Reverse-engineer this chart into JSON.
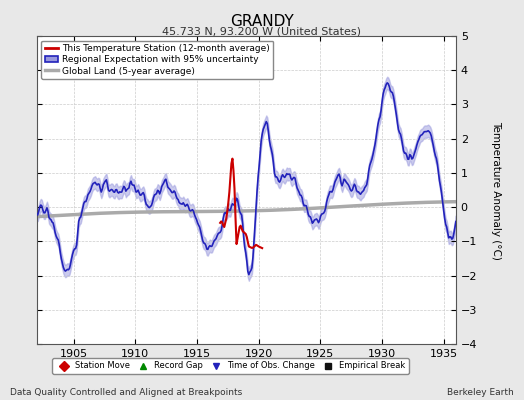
{
  "title": "GRANDY",
  "subtitle": "45.733 N, 93.200 W (United States)",
  "ylabel": "Temperature Anomaly (°C)",
  "xlabel_left": "Data Quality Controlled and Aligned at Breakpoints",
  "xlabel_right": "Berkeley Earth",
  "ylim": [
    -4,
    5
  ],
  "xlim": [
    1902,
    1936
  ],
  "xticks": [
    1905,
    1910,
    1915,
    1920,
    1925,
    1930,
    1935
  ],
  "yticks": [
    -4,
    -3,
    -2,
    -1,
    0,
    1,
    2,
    3,
    4,
    5
  ],
  "background_color": "#e8e8e8",
  "plot_background": "#ffffff",
  "regional_color": "#2222bb",
  "regional_fill_color": "#9999dd",
  "station_color": "#cc0000",
  "global_color": "#aaaaaa",
  "global_lw": 2.5,
  "regional_lw": 1.2,
  "station_lw": 1.5,
  "legend_items": [
    {
      "label": "This Temperature Station (12-month average)",
      "color": "#cc0000",
      "lw": 2
    },
    {
      "label": "Regional Expectation with 95% uncertainty",
      "color": "#2222bb",
      "fill": "#9999dd"
    },
    {
      "label": "Global Land (5-year average)",
      "color": "#aaaaaa",
      "lw": 3
    }
  ],
  "bottom_legend": [
    {
      "label": "Station Move",
      "color": "#cc0000",
      "marker": "D"
    },
    {
      "label": "Record Gap",
      "color": "#008800",
      "marker": "^"
    },
    {
      "label": "Time of Obs. Change",
      "color": "#2222bb",
      "marker": "v"
    },
    {
      "label": "Empirical Break",
      "color": "#111111",
      "marker": "s"
    }
  ]
}
